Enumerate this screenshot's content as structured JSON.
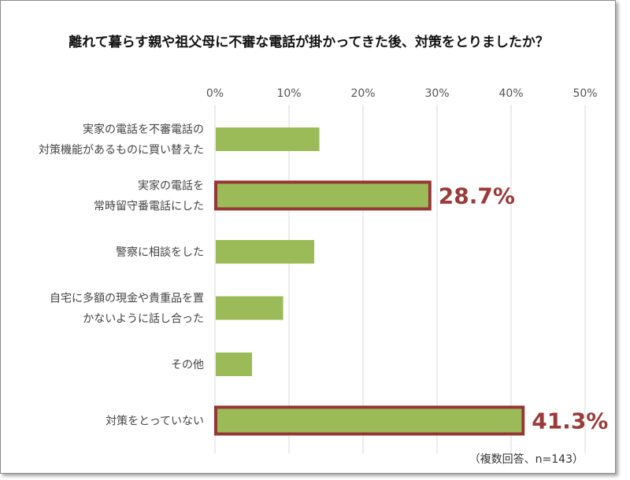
{
  "chart_data": {
    "type": "bar",
    "orientation": "horizontal",
    "title": "離れて暮らす親や祖父母に不審な電話が掛かってきた後、対策をとりましたか？",
    "categories": [
      [
        "実家の電話を不審電話の",
        "対策機能があるものに買い替えた"
      ],
      [
        "実家の電話を",
        "常時留守番電話にした"
      ],
      [
        "警察に相談をした"
      ],
      [
        "自宅に多額の現金や貴重品を置",
        "かないように話し合った"
      ],
      [
        "その他"
      ],
      [
        "対策をとっていない"
      ]
    ],
    "values": [
      14.0,
      28.7,
      13.3,
      9.1,
      4.9,
      41.3
    ],
    "highlight": [
      false,
      true,
      false,
      false,
      false,
      true
    ],
    "highlight_labels": [
      "",
      "28.7%",
      "",
      "",
      "",
      "41.3%"
    ],
    "xlim": [
      0,
      50
    ],
    "xticks": [
      "0%",
      "10%",
      "20%",
      "30%",
      "40%",
      "50%"
    ],
    "grid": true,
    "colors": {
      "bar": "#9bbb59",
      "highlight_border": "#953735",
      "highlight_text": "#9b3a3a",
      "grid": "#d9d9d9"
    },
    "note": "（複数回答、n=143）"
  }
}
